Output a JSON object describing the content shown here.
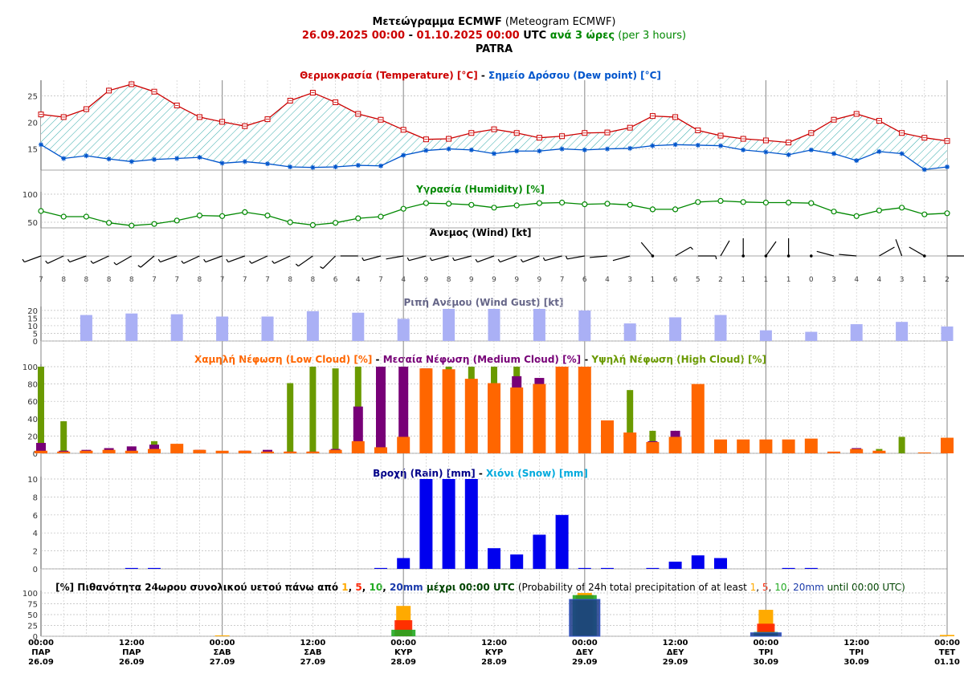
{
  "header": {
    "line1_gr": "Μετεώγραμμα ECMWF",
    "line1_en": " (Meteogram ECMWF)",
    "date_from": "26.09.2025 00:00",
    "dash": " - ",
    "date_to": "01.10.2025 00:00",
    "utc": " UTC ",
    "step_gr": "ανά 3 ώρες",
    "step_en": " (per 3 hours)",
    "location": "PATRA"
  },
  "colors": {
    "temperature": "#cc0000",
    "dewpoint": "#0055cc",
    "humidity": "#008800",
    "gust": "#aab0f5",
    "low_cloud": "#ff6600",
    "medium_cloud": "#770077",
    "high_cloud": "#6a9a00",
    "rain": "#0000ee",
    "snow": "#00aadd",
    "p1": "#ffaa00",
    "p5": "#ff2200",
    "p10": "#22aa22",
    "p20": "#1a3a8a"
  },
  "chart_data": [
    {
      "type": "line",
      "title_parts": [
        "Θερμοκρασία (Temperature) [°C]",
        " - ",
        "Σημείο Δρόσου (Dew point) [°C]"
      ],
      "yticks": [
        15,
        20,
        25
      ],
      "ylim": [
        11,
        27.5
      ],
      "series": [
        {
          "name": "Θερμοκρασία (Temperature) [°C]",
          "values": [
            21.5,
            21,
            22.5,
            26,
            27.2,
            25.8,
            23.2,
            21,
            20.1,
            19.3,
            20.6,
            24.1,
            25.6,
            23.8,
            21.6,
            20.5,
            18.6,
            16.8,
            16.9,
            18,
            18.7,
            18,
            17.1,
            17.4,
            18,
            18.1,
            19,
            21.2,
            21,
            18.5,
            17.5,
            16.9,
            16.6,
            16.2,
            18,
            20.5,
            21.6,
            20.3,
            18,
            17.1,
            16.5
          ]
        },
        {
          "name": "Σημείο Δρόσου (Dew point) [°C]",
          "values": [
            15.8,
            13.2,
            13.7,
            13.1,
            12.6,
            13,
            13.2,
            13.4,
            12.3,
            12.6,
            12.2,
            11.6,
            11.5,
            11.6,
            11.9,
            11.8,
            13.8,
            14.7,
            15,
            14.8,
            14.1,
            14.6,
            14.6,
            15,
            14.8,
            15,
            15.1,
            15.6,
            15.8,
            15.7,
            15.6,
            14.8,
            14.4,
            13.9,
            14.8,
            14.1,
            12.8,
            14.5,
            14.1,
            11.1,
            11.6
          ]
        }
      ]
    },
    {
      "type": "line",
      "title": "Υγρασία (Humidity) [%]",
      "yticks": [
        50,
        100
      ],
      "ylim": [
        40,
        100
      ],
      "series": [
        {
          "name": "Υγρασία (Humidity) [%]",
          "values": [
            70,
            60,
            60,
            49,
            44,
            47,
            53,
            62,
            61,
            68,
            62,
            50,
            45,
            49,
            57,
            60,
            74,
            84,
            83,
            81,
            76,
            80,
            84,
            85,
            82,
            83,
            81,
            73,
            73,
            86,
            88,
            86,
            85,
            85,
            84,
            69,
            61,
            71,
            76,
            64,
            66
          ]
        }
      ]
    },
    {
      "type": "wind",
      "title": "Άνεμος (Wind) [kt]",
      "speeds": [
        7,
        8,
        8,
        8,
        8,
        7,
        7,
        8,
        7,
        7,
        7,
        8,
        8,
        6,
        4,
        7,
        4,
        9,
        8,
        9,
        9,
        9,
        9,
        7,
        6,
        4,
        3,
        1,
        6,
        5,
        2,
        1,
        1,
        1,
        0,
        3,
        4,
        4,
        3,
        1,
        2
      ],
      "directions_deg": [
        250,
        245,
        250,
        245,
        240,
        230,
        250,
        245,
        250,
        250,
        245,
        245,
        235,
        225,
        270,
        255,
        260,
        255,
        255,
        255,
        250,
        250,
        250,
        255,
        260,
        265,
        255,
        320,
        60,
        90,
        30,
        0,
        35,
        0,
        0,
        285,
        275,
        60,
        340,
        300,
        90
      ]
    },
    {
      "type": "bar",
      "title": "Ριπή Ανέμου (Wind Gust) [kt]",
      "yticks": [
        0,
        5,
        10,
        15,
        20
      ],
      "ylim": [
        0,
        21
      ],
      "values": [
        null,
        17,
        null,
        18,
        null,
        17.5,
        null,
        16,
        null,
        16,
        null,
        19.5,
        null,
        18.5,
        null,
        14.5,
        null,
        21,
        null,
        21,
        null,
        21,
        null,
        20,
        null,
        11.5,
        null,
        15.5,
        null,
        17,
        null,
        7,
        null,
        6,
        null,
        11,
        null,
        12.5,
        null,
        9.5
      ]
    },
    {
      "type": "bar",
      "title_parts": [
        "Χαμηλή Νέφωση (Low Cloud) [%]",
        " - ",
        "Μεσαία Νέφωση (Medium Cloud) [%]",
        " - ",
        "Υψηλή Νέφωση (High Cloud) [%]"
      ],
      "yticks": [
        0,
        20,
        40,
        60,
        80,
        100
      ],
      "ylim": [
        0,
        100
      ],
      "series": [
        {
          "name": "Χαμηλή Νέφωση (Low Cloud) [%]",
          "values": [
            3,
            2,
            3,
            4,
            3,
            5,
            11,
            4,
            3,
            3,
            2,
            2,
            2,
            4,
            14,
            7,
            19,
            98,
            97,
            86,
            81,
            76,
            80,
            100,
            100,
            38,
            24,
            13,
            19,
            80,
            16,
            16,
            16,
            16,
            17,
            2,
            5,
            3,
            0,
            1,
            18
          ]
        },
        {
          "name": "Μεσαία Νέφωση (Medium Cloud) [%]",
          "values": [
            12,
            3,
            4,
            6,
            8,
            10,
            10,
            4,
            2,
            3,
            4,
            2,
            2,
            5,
            54,
            100,
            100,
            98,
            0,
            0,
            0,
            89,
            87,
            0,
            0,
            0,
            0,
            14,
            26,
            0,
            0,
            0,
            0,
            0,
            0,
            0,
            6,
            0,
            0,
            0,
            0
          ]
        },
        {
          "name": "Υψηλή Νέφωση (High Cloud) [%]",
          "values": [
            100,
            37,
            0,
            0,
            0,
            14,
            0,
            0,
            0,
            0,
            0,
            81,
            100,
            98,
            100,
            0,
            0,
            0,
            100,
            100,
            100,
            100,
            0,
            0,
            0,
            0,
            73,
            26,
            0,
            0,
            0,
            0,
            0,
            0,
            0,
            0,
            0,
            5,
            19,
            0,
            0
          ]
        }
      ]
    },
    {
      "type": "bar",
      "title_parts": [
        "Βροχή (Rain) [mm]",
        " - ",
        "Χιόνι (Snow) [mm]"
      ],
      "yticks": [
        0,
        2,
        4,
        6,
        8,
        10
      ],
      "ylim": [
        0,
        10
      ],
      "series": [
        {
          "name": "Βροχή (Rain) [mm]",
          "values": [
            0,
            0,
            0,
            0,
            0.1,
            0.1,
            0,
            0,
            0,
            0,
            0,
            0,
            0,
            0,
            0,
            0.1,
            1.2,
            10,
            10,
            10,
            2.3,
            1.6,
            3.8,
            6,
            0.1,
            0.1,
            0,
            0.1,
            0.8,
            1.5,
            1.2,
            0,
            0,
            0.1,
            0.1,
            0,
            0,
            0,
            0,
            0,
            0
          ]
        },
        {
          "name": "Χιόνι (Snow) [mm]",
          "values": [
            0,
            0,
            0,
            0,
            0,
            0,
            0,
            0,
            0,
            0,
            0,
            0,
            0,
            0,
            0,
            0,
            0,
            0,
            0,
            0,
            0,
            0,
            0,
            0,
            0,
            0,
            0,
            0,
            0,
            0,
            0,
            0,
            0,
            0,
            0,
            0,
            0,
            0,
            0,
            0,
            0
          ]
        }
      ]
    },
    {
      "type": "bar",
      "title_gr": "[%] Πιθανότητα 24ωρου συνολικού υετού πάνω από ",
      "title_en": "(Probability of 24h total precipitation of at least ",
      "thresholds": [
        "1",
        "5",
        "10",
        "20mm"
      ],
      "until_gr": " μέχρι 00:00 UTC ",
      "until_en": " until 00:00 UTC)",
      "yticks": [
        0,
        25,
        50,
        75,
        100
      ],
      "ylim": [
        0,
        100
      ],
      "categories": [
        "27.09",
        "28.09",
        "29.09",
        "30.09",
        "01.10"
      ],
      "series": [
        {
          "name": "1",
          "values": [
            2,
            70,
            100,
            61,
            3
          ]
        },
        {
          "name": "5",
          "values": [
            0,
            37,
            95,
            29,
            0
          ]
        },
        {
          "name": "10",
          "values": [
            0,
            15,
            95,
            10,
            0
          ]
        },
        {
          "name": "20mm",
          "values": [
            0,
            0,
            85,
            8,
            0
          ]
        }
      ]
    }
  ],
  "x_axis": {
    "labels": [
      {
        "time": "00:00",
        "day": "ΠΑΡ",
        "date": "26.09"
      },
      {
        "time": "12:00",
        "day": "ΠΑΡ",
        "date": "26.09"
      },
      {
        "time": "00:00",
        "day": "ΣΑΒ",
        "date": "27.09"
      },
      {
        "time": "12:00",
        "day": "ΣΑΒ",
        "date": "27.09"
      },
      {
        "time": "00:00",
        "day": "ΚΥΡ",
        "date": "28.09"
      },
      {
        "time": "12:00",
        "day": "ΚΥΡ",
        "date": "28.09"
      },
      {
        "time": "00:00",
        "day": "ΔΕΥ",
        "date": "29.09"
      },
      {
        "time": "12:00",
        "day": "ΔΕΥ",
        "date": "29.09"
      },
      {
        "time": "00:00",
        "day": "ΤΡΙ",
        "date": "30.09"
      },
      {
        "time": "12:00",
        "day": "ΤΡΙ",
        "date": "30.09"
      },
      {
        "time": "00:00",
        "day": "ΤΕΤ",
        "date": "01.10"
      }
    ]
  }
}
